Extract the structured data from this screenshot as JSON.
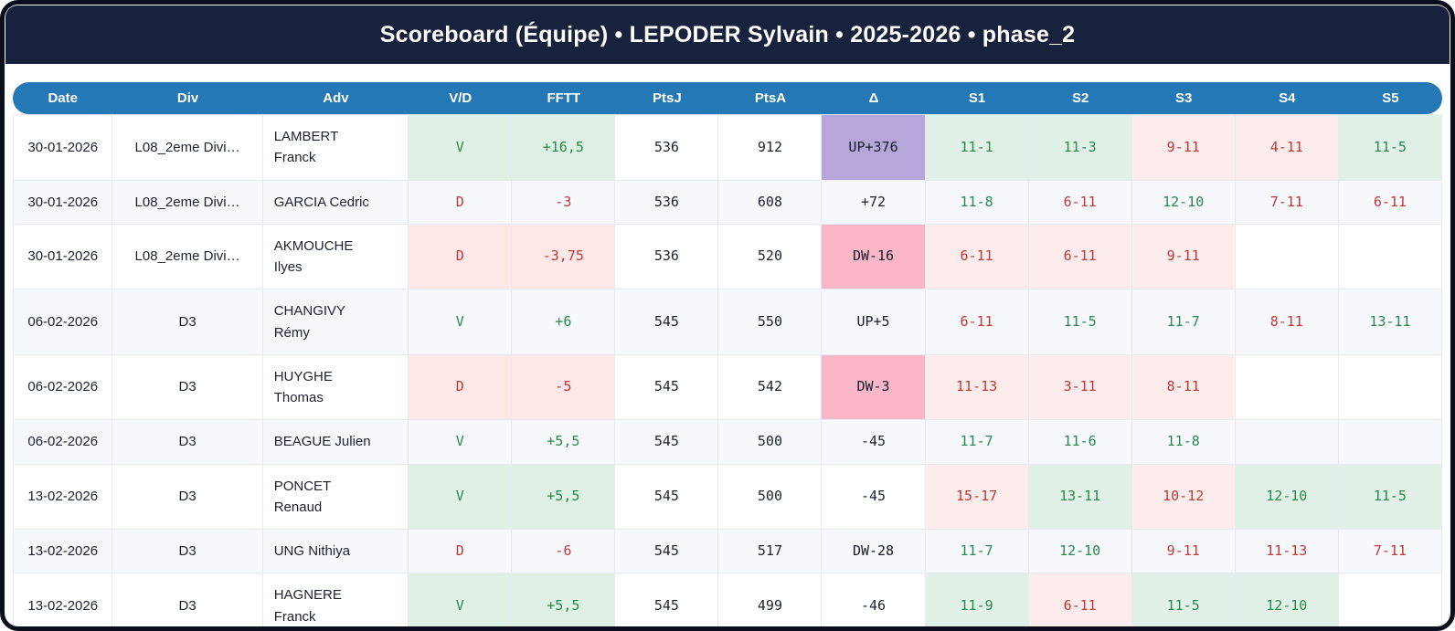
{
  "title": "Scoreboard (Équipe) • LEPODER Sylvain • 2025-2026 • phase_2",
  "colors": {
    "header_bar": "#19223c",
    "table_header": "#2478b5",
    "stripe_bg": "#f7f8fc",
    "win_bg": "#dff0e5",
    "win_text": "#28894b",
    "loss_bg": "#fde7e7",
    "loss_text": "#c23934",
    "set_win_bg": "#e1f1e7",
    "set_loss_bg": "#fdecec",
    "delta_up_bg": "#b7a6d9",
    "delta_down_bg": "#f9b6c6"
  },
  "table": {
    "columns": [
      "Date",
      "Div",
      "Adv",
      "V/D",
      "FFTT",
      "PtsJ",
      "PtsA",
      "Δ",
      "S1",
      "S2",
      "S3",
      "S4",
      "S5"
    ],
    "rows": [
      {
        "date": "30-01-2026",
        "div": "L08_2eme Divi…",
        "adv": "LAMBERT\nFranck",
        "vd": "V",
        "fftt": "+16,5",
        "ptsj": "536",
        "ptsa": "912",
        "delta": "UP+376",
        "sets": [
          "11-1",
          "11-3",
          "9-11",
          "4-11",
          "11-5"
        ]
      },
      {
        "date": "30-01-2026",
        "div": "L08_2eme Divi…",
        "adv": "GARCIA Cedric",
        "vd": "D",
        "fftt": "-3",
        "ptsj": "536",
        "ptsa": "608",
        "delta": "+72",
        "sets": [
          "11-8",
          "6-11",
          "12-10",
          "7-11",
          "6-11"
        ]
      },
      {
        "date": "30-01-2026",
        "div": "L08_2eme Divi…",
        "adv": "AKMOUCHE\nIlyes",
        "vd": "D",
        "fftt": "-3,75",
        "ptsj": "536",
        "ptsa": "520",
        "delta": "DW-16",
        "sets": [
          "6-11",
          "6-11",
          "9-11",
          "",
          ""
        ]
      },
      {
        "date": "06-02-2026",
        "div": "D3",
        "adv": "CHANGIVY\nRémy",
        "vd": "V",
        "fftt": "+6",
        "ptsj": "545",
        "ptsa": "550",
        "delta": "UP+5",
        "sets": [
          "6-11",
          "11-5",
          "11-7",
          "8-11",
          "13-11"
        ]
      },
      {
        "date": "06-02-2026",
        "div": "D3",
        "adv": "HUYGHE\nThomas",
        "vd": "D",
        "fftt": "-5",
        "ptsj": "545",
        "ptsa": "542",
        "delta": "DW-3",
        "sets": [
          "11-13",
          "3-11",
          "8-11",
          "",
          ""
        ]
      },
      {
        "date": "06-02-2026",
        "div": "D3",
        "adv": "BEAGUE Julien",
        "vd": "V",
        "fftt": "+5,5",
        "ptsj": "545",
        "ptsa": "500",
        "delta": "-45",
        "sets": [
          "11-7",
          "11-6",
          "11-8",
          "",
          ""
        ]
      },
      {
        "date": "13-02-2026",
        "div": "D3",
        "adv": "PONCET\nRenaud",
        "vd": "V",
        "fftt": "+5,5",
        "ptsj": "545",
        "ptsa": "500",
        "delta": "-45",
        "sets": [
          "15-17",
          "13-11",
          "10-12",
          "12-10",
          "11-5"
        ]
      },
      {
        "date": "13-02-2026",
        "div": "D3",
        "adv": "UNG Nithiya",
        "vd": "D",
        "fftt": "-6",
        "ptsj": "545",
        "ptsa": "517",
        "delta": "DW-28",
        "sets": [
          "11-7",
          "12-10",
          "9-11",
          "11-13",
          "7-11"
        ]
      },
      {
        "date": "13-02-2026",
        "div": "D3",
        "adv": "HAGNERE\nFranck",
        "vd": "V",
        "fftt": "+5,5",
        "ptsj": "545",
        "ptsa": "499",
        "delta": "-46",
        "sets": [
          "11-9",
          "6-11",
          "11-5",
          "12-10",
          ""
        ]
      }
    ]
  }
}
